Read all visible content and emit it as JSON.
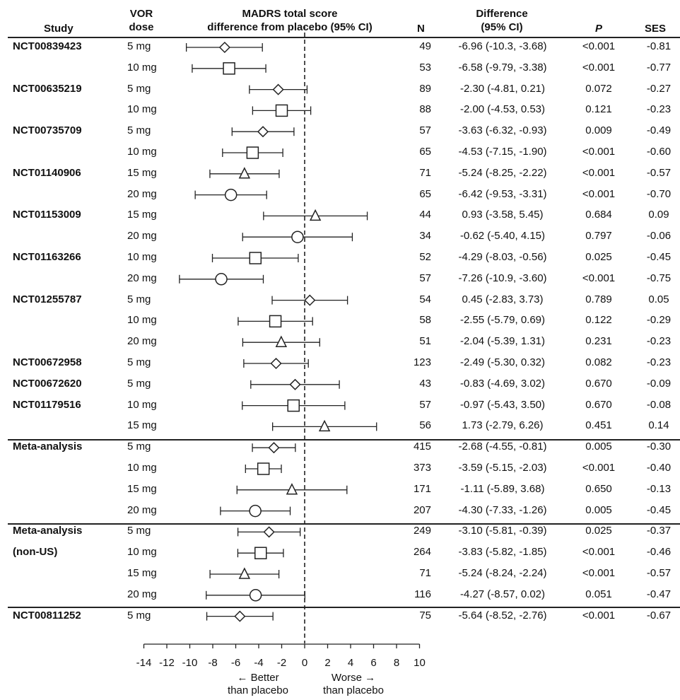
{
  "headers": {
    "study": "Study",
    "dose": [
      "VOR",
      "dose"
    ],
    "madrs": [
      "MADRS total score",
      "difference from placebo (95% CI)"
    ],
    "n": "N",
    "diff": [
      "Difference",
      "(95% CI)"
    ],
    "p": "P",
    "ses": "SES"
  },
  "axis": {
    "ticks": [
      "-14",
      "-12",
      "-10",
      "-8",
      "-6",
      "-4",
      "-2",
      "0",
      "2",
      "4",
      "6",
      "8",
      "10"
    ],
    "better": [
      "← Better",
      "than placebo"
    ],
    "worse": [
      "Worse →",
      "than placebo"
    ]
  },
  "chart_data": {
    "type": "forest",
    "xlim": [
      -14,
      10
    ],
    "reference_line": 0,
    "rows": [
      {
        "study": "NCT00839423",
        "dose": "5 mg",
        "n": "49",
        "est": -6.96,
        "lo": -10.3,
        "hi": -3.68,
        "diff": "-6.96 (-10.3, -3.68)",
        "p": "<0.001",
        "ses": "-0.81",
        "marker": "diamond"
      },
      {
        "study": "",
        "dose": "10 mg",
        "n": "53",
        "est": -6.58,
        "lo": -9.79,
        "hi": -3.38,
        "diff": "-6.58 (-9.79, -3.38)",
        "p": "<0.001",
        "ses": "-0.77",
        "marker": "square"
      },
      {
        "study": "NCT00635219",
        "dose": "5 mg",
        "n": "89",
        "est": -2.3,
        "lo": -4.81,
        "hi": 0.21,
        "diff": "-2.30 (-4.81, 0.21)",
        "p": "0.072",
        "ses": "-0.27",
        "marker": "diamond"
      },
      {
        "study": "",
        "dose": "10 mg",
        "n": "88",
        "est": -2.0,
        "lo": -4.53,
        "hi": 0.53,
        "diff": "-2.00 (-4.53, 0.53)",
        "p": "0.121",
        "ses": "-0.23",
        "marker": "square"
      },
      {
        "study": "NCT00735709",
        "dose": "5 mg",
        "n": "57",
        "est": -3.63,
        "lo": -6.32,
        "hi": -0.93,
        "diff": "-3.63 (-6.32, -0.93)",
        "p": "0.009",
        "ses": "-0.49",
        "marker": "diamond"
      },
      {
        "study": "",
        "dose": "10 mg",
        "n": "65",
        "est": -4.53,
        "lo": -7.15,
        "hi": -1.9,
        "diff": "-4.53 (-7.15, -1.90)",
        "p": "<0.001",
        "ses": "-0.60",
        "marker": "square"
      },
      {
        "study": "NCT01140906",
        "dose": "15 mg",
        "n": "71",
        "est": -5.24,
        "lo": -8.25,
        "hi": -2.22,
        "diff": "-5.24 (-8.25, -2.22)",
        "p": "<0.001",
        "ses": "-0.57",
        "marker": "triangle"
      },
      {
        "study": "",
        "dose": "20 mg",
        "n": "65",
        "est": -6.42,
        "lo": -9.53,
        "hi": -3.31,
        "diff": "-6.42 (-9.53, -3.31)",
        "p": "<0.001",
        "ses": "-0.70",
        "marker": "circle"
      },
      {
        "study": "NCT01153009",
        "dose": "15 mg",
        "n": "44",
        "est": 0.93,
        "lo": -3.58,
        "hi": 5.45,
        "diff": "0.93 (-3.58, 5.45)",
        "p": "0.684",
        "ses": "0.09",
        "marker": "triangle"
      },
      {
        "study": "",
        "dose": "20 mg",
        "n": "34",
        "est": -0.62,
        "lo": -5.4,
        "hi": 4.15,
        "diff": "-0.62 (-5.40, 4.15)",
        "p": "0.797",
        "ses": "-0.06",
        "marker": "circle"
      },
      {
        "study": "NCT01163266",
        "dose": "10 mg",
        "n": "52",
        "est": -4.29,
        "lo": -8.03,
        "hi": -0.56,
        "diff": "-4.29 (-8.03, -0.56)",
        "p": "0.025",
        "ses": "-0.45",
        "marker": "square"
      },
      {
        "study": "",
        "dose": "20 mg",
        "n": "57",
        "est": -7.26,
        "lo": -10.9,
        "hi": -3.6,
        "diff": "-7.26 (-10.9, -3.60)",
        "p": "<0.001",
        "ses": "-0.75",
        "marker": "circle"
      },
      {
        "study": "NCT01255787",
        "dose": "5 mg",
        "n": "54",
        "est": 0.45,
        "lo": -2.83,
        "hi": 3.73,
        "diff": "0.45 (-2.83, 3.73)",
        "p": "0.789",
        "ses": "0.05",
        "marker": "diamond"
      },
      {
        "study": "",
        "dose": "10 mg",
        "n": "58",
        "est": -2.55,
        "lo": -5.79,
        "hi": 0.69,
        "diff": "-2.55 (-5.79, 0.69)",
        "p": "0.122",
        "ses": "-0.29",
        "marker": "square"
      },
      {
        "study": "",
        "dose": "20 mg",
        "n": "51",
        "est": -2.04,
        "lo": -5.39,
        "hi": 1.31,
        "diff": "-2.04 (-5.39, 1.31)",
        "p": "0.231",
        "ses": "-0.23",
        "marker": "triangle"
      },
      {
        "study": "NCT00672958",
        "dose": "5 mg",
        "n": "123",
        "est": -2.49,
        "lo": -5.3,
        "hi": 0.32,
        "diff": "-2.49 (-5.30, 0.32)",
        "p": "0.082",
        "ses": "-0.23",
        "marker": "diamond"
      },
      {
        "study": "NCT00672620",
        "dose": "5 mg",
        "n": "43",
        "est": -0.83,
        "lo": -4.69,
        "hi": 3.02,
        "diff": "-0.83 (-4.69, 3.02)",
        "p": "0.670",
        "ses": "-0.09",
        "marker": "diamond"
      },
      {
        "study": "NCT01179516",
        "dose": "10 mg",
        "n": "57",
        "est": -0.97,
        "lo": -5.43,
        "hi": 3.5,
        "diff": "-0.97 (-5.43, 3.50)",
        "p": "0.670",
        "ses": "-0.08",
        "marker": "square"
      },
      {
        "study": "",
        "dose": "15 mg",
        "n": "56",
        "est": 1.73,
        "lo": -2.79,
        "hi": 6.26,
        "diff": "1.73 (-2.79, 6.26)",
        "p": "0.451",
        "ses": "0.14",
        "marker": "triangle"
      },
      {
        "study": "Meta-analysis",
        "dose": "5 mg",
        "n": "415",
        "est": -2.68,
        "lo": -4.55,
        "hi": -0.81,
        "diff": "-2.68 (-4.55, -0.81)",
        "p": "0.005",
        "ses": "-0.30",
        "marker": "diamond"
      },
      {
        "study": "",
        "dose": "10 mg",
        "n": "373",
        "est": -3.59,
        "lo": -5.15,
        "hi": -2.03,
        "diff": "-3.59 (-5.15, -2.03)",
        "p": "<0.001",
        "ses": "-0.40",
        "marker": "square"
      },
      {
        "study": "",
        "dose": "15 mg",
        "n": "171",
        "est": -1.11,
        "lo": -5.89,
        "hi": 3.68,
        "diff": "-1.11 (-5.89, 3.68)",
        "p": "0.650",
        "ses": "-0.13",
        "marker": "triangle"
      },
      {
        "study": "",
        "dose": "20 mg",
        "n": "207",
        "est": -4.3,
        "lo": -7.33,
        "hi": -1.26,
        "diff": "-4.30 (-7.33, -1.26)",
        "p": "0.005",
        "ses": "-0.45",
        "marker": "circle"
      },
      {
        "study": "Meta-analysis",
        "dose": "5 mg",
        "n": "249",
        "est": -3.1,
        "lo": -5.81,
        "hi": -0.39,
        "diff": "-3.10 (-5.81, -0.39)",
        "p": "0.025",
        "ses": "-0.37",
        "marker": "diamond"
      },
      {
        "study": "(non-US)",
        "dose": "10 mg",
        "n": "264",
        "est": -3.83,
        "lo": -5.82,
        "hi": -1.85,
        "diff": "-3.83 (-5.82, -1.85)",
        "p": "<0.001",
        "ses": "-0.46",
        "marker": "square"
      },
      {
        "study": "",
        "dose": "15 mg",
        "n": "71",
        "est": -5.24,
        "lo": -8.24,
        "hi": -2.24,
        "diff": "-5.24 (-8.24, -2.24)",
        "p": "<0.001",
        "ses": "-0.57",
        "marker": "triangle"
      },
      {
        "study": "",
        "dose": "20 mg",
        "n": "116",
        "est": -4.27,
        "lo": -8.57,
        "hi": 0.02,
        "diff": "-4.27 (-8.57, 0.02)",
        "p": "0.051",
        "ses": "-0.47",
        "marker": "circle"
      },
      {
        "study": "NCT00811252",
        "dose": "5 mg",
        "n": "75",
        "est": -5.64,
        "lo": -8.52,
        "hi": -2.76,
        "diff": "-5.64 (-8.52, -2.76)",
        "p": "<0.001",
        "ses": "-0.67",
        "marker": "diamond"
      }
    ]
  }
}
